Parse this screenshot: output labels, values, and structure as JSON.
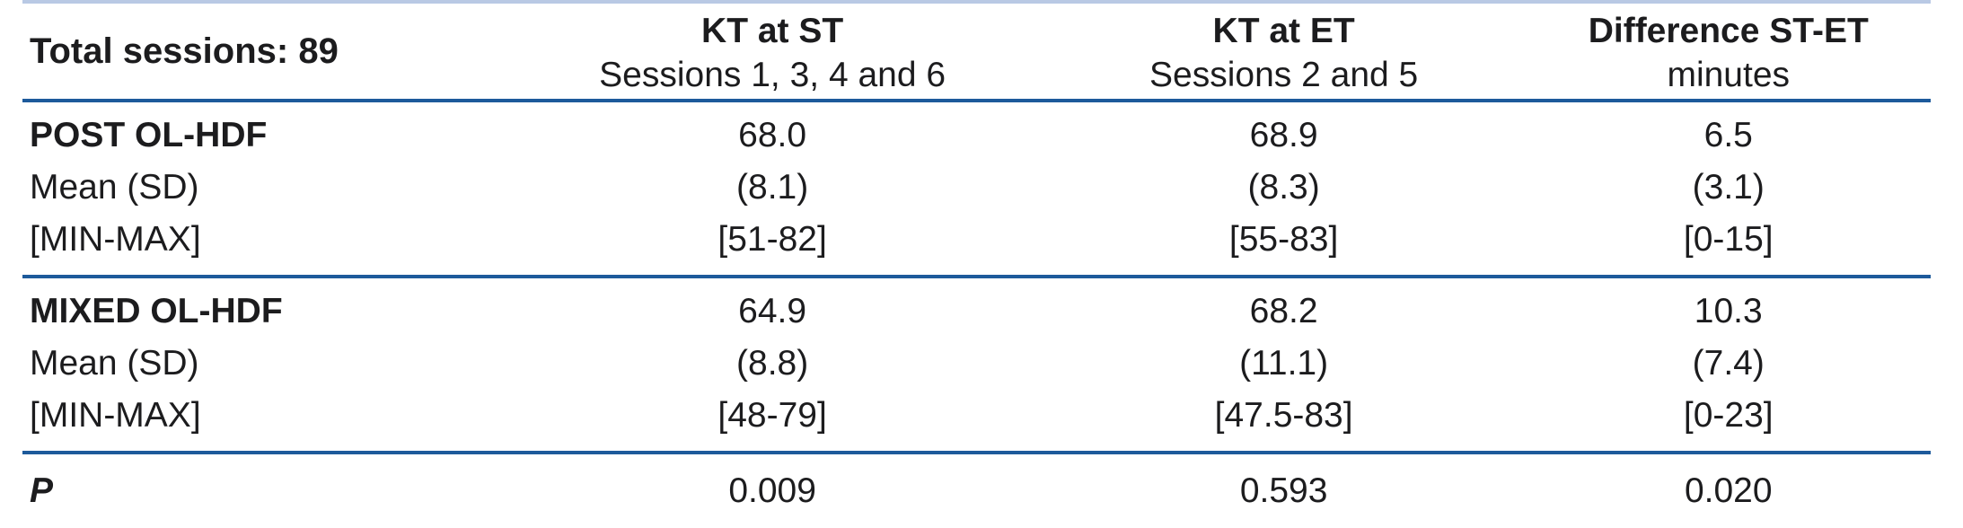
{
  "table": {
    "title": "Total sessions: 89",
    "header": {
      "columns": [
        {
          "title": "KT at ST",
          "subtitle": "Sessions 1, 3, 4 and 6"
        },
        {
          "title": "KT at ET",
          "subtitle": "Sessions 2 and 5"
        },
        {
          "title": "Difference ST-ET",
          "subtitle": "minutes"
        }
      ]
    },
    "sections": [
      {
        "name": "POST OL-HDF",
        "rows": [
          {
            "label": "POST OL-HDF",
            "values": [
              "68.0",
              "68.9",
              "6.5"
            ]
          },
          {
            "label": "Mean (SD)",
            "values": [
              "(8.1)",
              "(8.3)",
              "(3.1)"
            ]
          },
          {
            "label": "[MIN-MAX]",
            "values": [
              "[51-82]",
              "[55-83]",
              "[0-15]"
            ]
          }
        ]
      },
      {
        "name": "MIXED OL-HDF",
        "rows": [
          {
            "label": "MIXED OL-HDF",
            "values": [
              "64.9",
              "68.2",
              "10.3"
            ]
          },
          {
            "label": "Mean (SD)",
            "values": [
              "(8.8)",
              "(11.1)",
              "(7.4)"
            ]
          },
          {
            "label": "[MIN-MAX]",
            "values": [
              "[48-79]",
              "[47.5-83]",
              "[0-23]"
            ]
          }
        ]
      },
      {
        "name": "P",
        "rows": [
          {
            "label": "P",
            "values": [
              "0.009",
              "0.593",
              "0.020"
            ]
          }
        ]
      }
    ]
  },
  "colors": {
    "rule_dark": "#1d5a9b",
    "rule_light": "#b9c9e4",
    "text": "#1c1c1e",
    "background": "#ffffff"
  }
}
